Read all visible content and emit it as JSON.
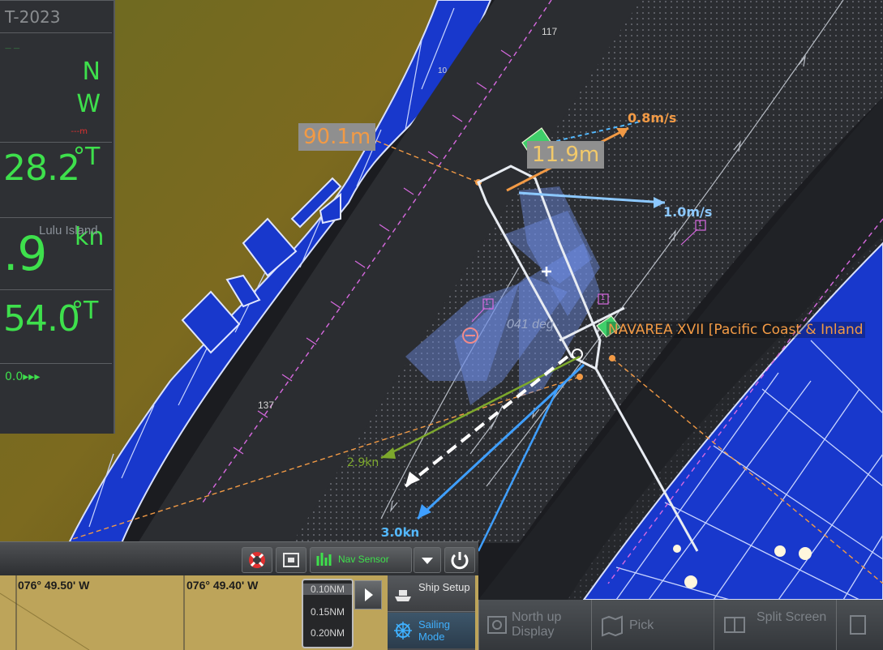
{
  "left_panel": {
    "date": "T-2023",
    "lat_hemisphere": "N",
    "lon_hemisphere": "W",
    "distance_placeholder": "---m",
    "heading_value": "28.2",
    "heading_unit": "°T",
    "speed_value": ".9",
    "speed_unit": "kn",
    "course_value": "54.0",
    "course_unit": "°T",
    "bottom_value": "0.0▸▸▸",
    "place_label": "Lulu Island"
  },
  "chart": {
    "distance_label_1": "90.1m",
    "distance_label_2": "11.9m",
    "current_1": "0.8m/s",
    "current_2": "1.0m/s",
    "speed_vector_1": "2.9kn",
    "speed_vector_2": "3.0kn",
    "heading_ghost": "041 deg",
    "navarea": "NAVAREA XVII [Pacific Coast & Inland",
    "depth_1": "117",
    "depth_2": "137",
    "depth_3": "10",
    "marker_1": "1",
    "marker_2": "1",
    "marker_3": "1",
    "colors": {
      "sea": "#202227",
      "channel": "#2c2e32",
      "land": "#7c6a1f",
      "shore": "#1834c8",
      "route": "#d869e0",
      "orange": "#f29a45",
      "cyan": "#53b8ff"
    }
  },
  "toolbar": {
    "icons": [
      "life-ring-icon",
      "chart-card-icon",
      "sensor-icon",
      "chevron-down-icon",
      "power-icon"
    ],
    "sensor_label": "Nav Sensor"
  },
  "coordinates": {
    "lon_1": "076° 49.50' W",
    "lon_2": "076° 49.40' W"
  },
  "range": {
    "options": [
      "0.10NM",
      "0.15NM",
      "0.20NM"
    ],
    "selected": "0.10NM"
  },
  "menu": {
    "ship_setup": "Ship Setup",
    "sailing_mode": "Sailing Mode"
  },
  "softkeys": {
    "north_up": "North up Display",
    "pick": "Pick",
    "split_screen": "Split Screen"
  }
}
